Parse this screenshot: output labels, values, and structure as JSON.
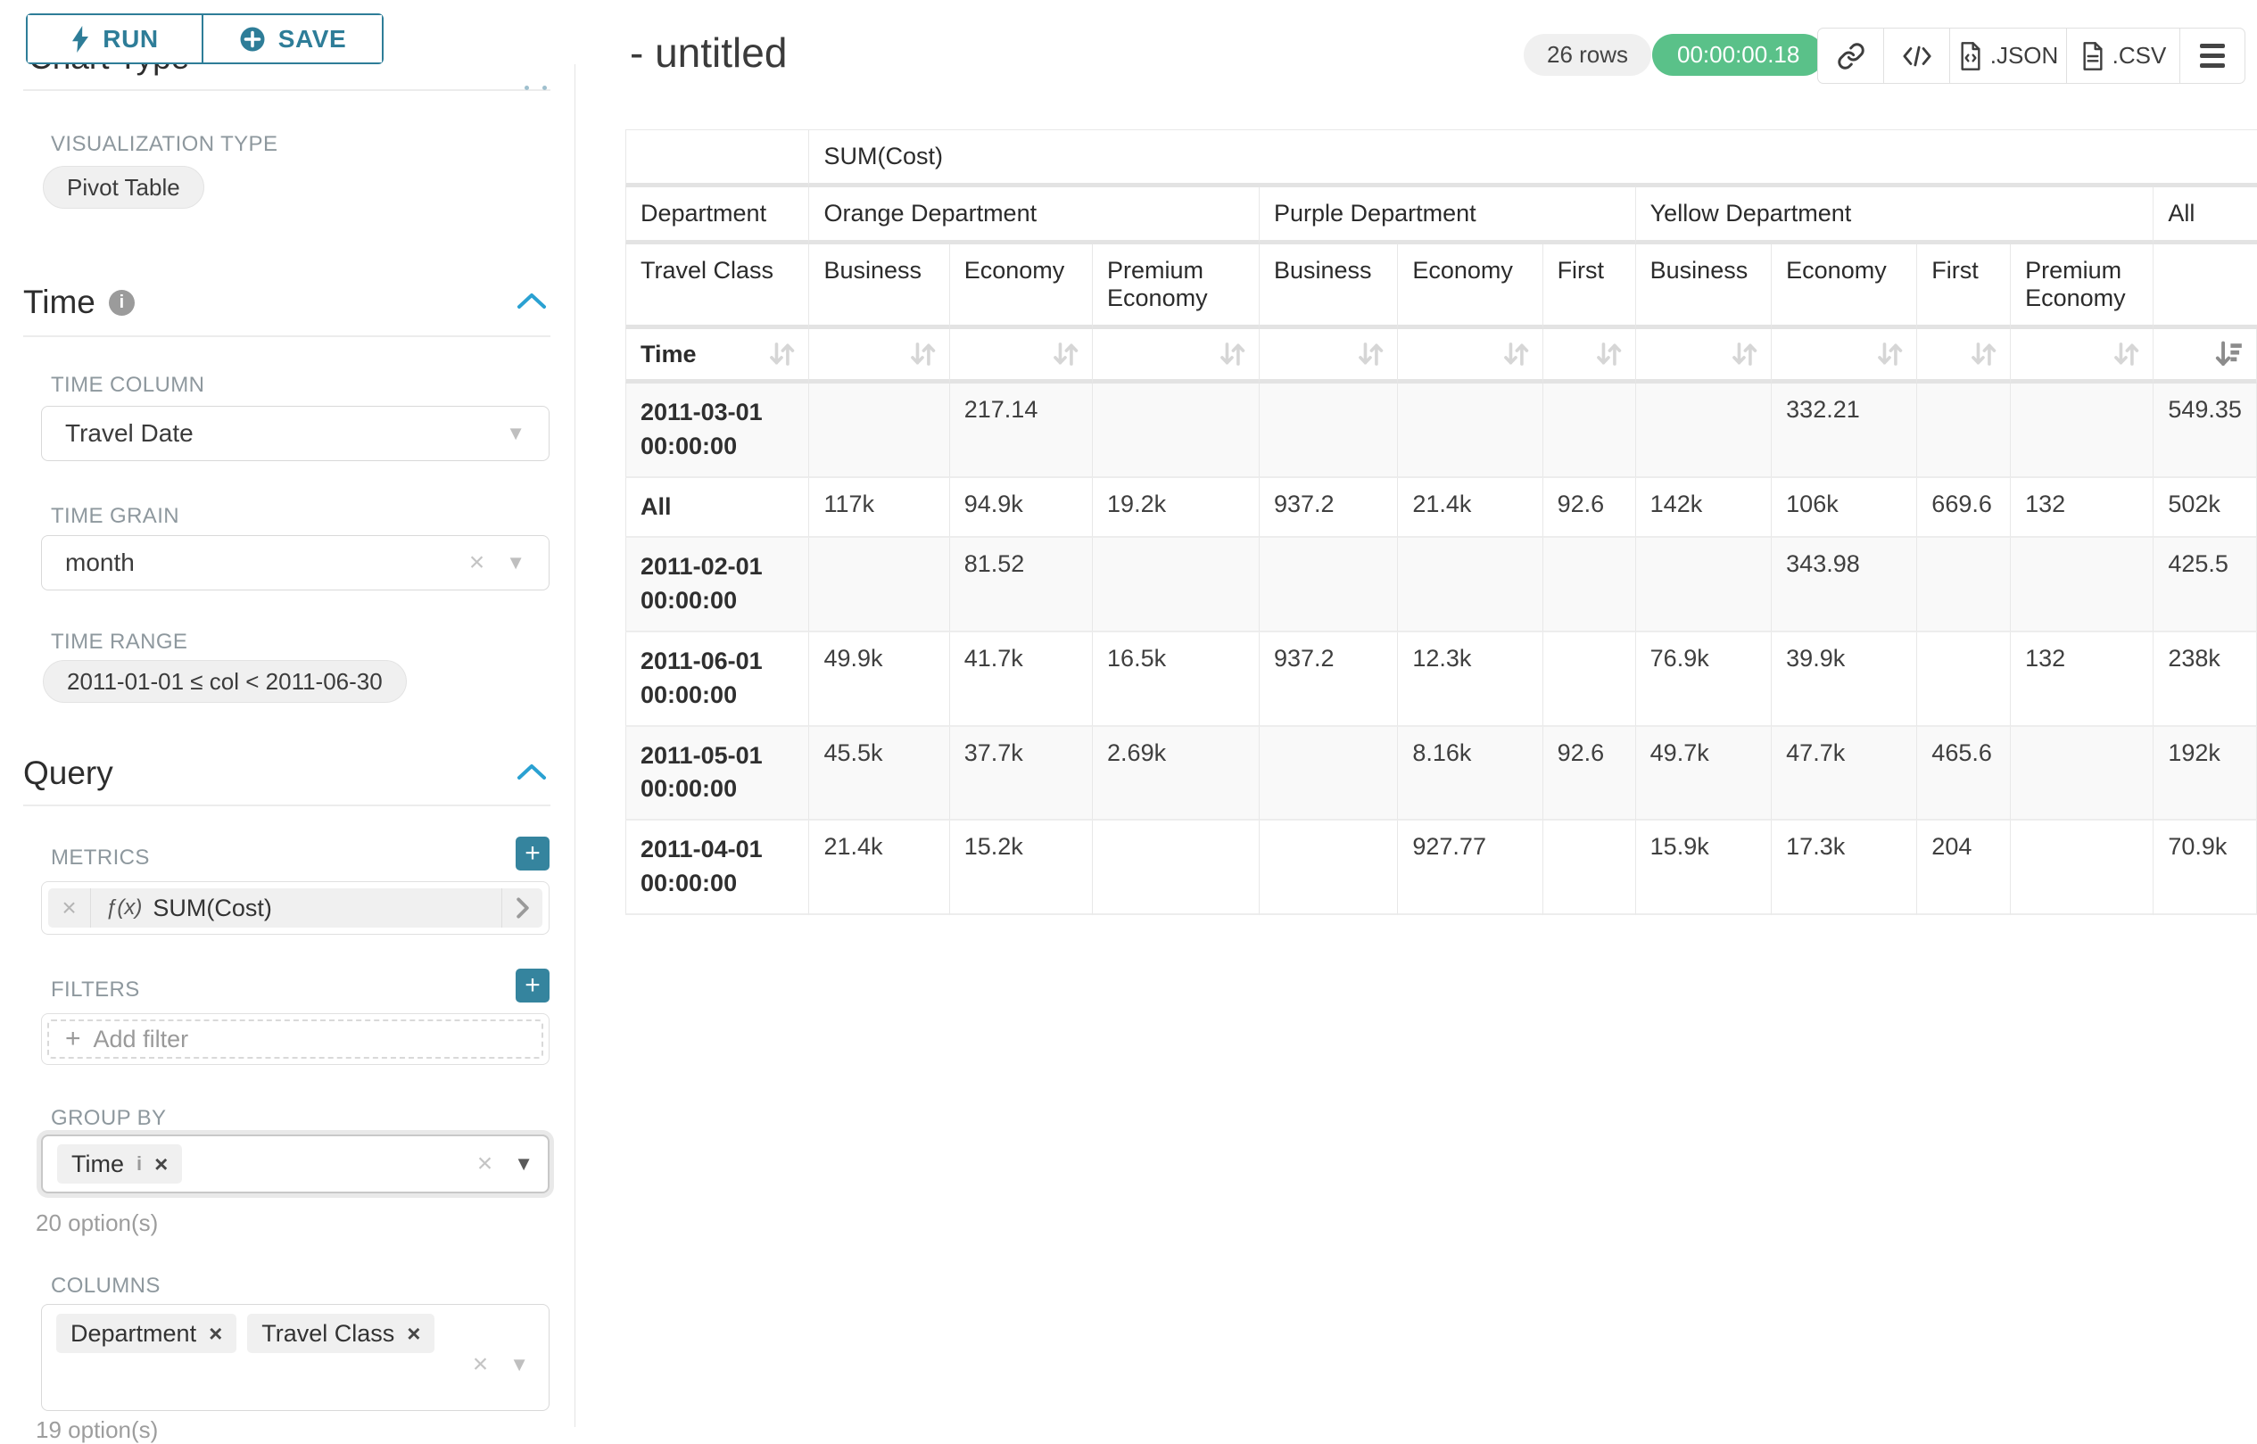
{
  "colors": {
    "accent_teal": "#2e7d98",
    "chevron_blue": "#2aa1d2",
    "success_green": "#5ac189"
  },
  "sidebar": {
    "run_label": "RUN",
    "save_label": "SAVE",
    "chart_type_heading": "Chart Type",
    "viz_type_label": "VISUALIZATION TYPE",
    "viz_type_value": "Pivot Table",
    "time_section": "Time",
    "time_column_label": "TIME COLUMN",
    "time_column_value": "Travel Date",
    "time_grain_label": "TIME GRAIN",
    "time_grain_value": "month",
    "time_range_label": "TIME RANGE",
    "time_range_value": "2011-01-01 ≤ col < 2011-06-30",
    "query_section": "Query",
    "metrics_label": "METRICS",
    "metric_fx": "ƒ(x)",
    "metric_value": "SUM(Cost)",
    "filters_label": "FILTERS",
    "add_filter_placeholder": "Add filter",
    "group_by_label": "GROUP BY",
    "group_by_tags": [
      {
        "label": "Time",
        "info": true
      }
    ],
    "group_by_options": "20 option(s)",
    "columns_label": "COLUMNS",
    "columns_tags": [
      {
        "label": "Department"
      },
      {
        "label": "Travel Class"
      }
    ],
    "columns_options": "19 option(s)"
  },
  "header": {
    "title": "- untitled",
    "row_count": "26 rows",
    "timer": "00:00:00.18",
    "json_label": ".JSON",
    "csv_label": ".CSV"
  },
  "chart_data": {
    "type": "table",
    "metric": "SUM(Cost)",
    "corner": {
      "dept_label": "Department",
      "class_label": "Travel Class",
      "time_label": "Time"
    },
    "groups": [
      {
        "name": "Orange Department",
        "classes": [
          "Business",
          "Economy",
          "Premium Economy"
        ]
      },
      {
        "name": "Purple Department",
        "classes": [
          "Business",
          "Economy",
          "First"
        ]
      },
      {
        "name": "Yellow Department",
        "classes": [
          "Business",
          "Economy",
          "First",
          "Premium Economy"
        ]
      },
      {
        "name": "All",
        "classes": [
          ""
        ]
      }
    ],
    "rows": [
      {
        "label": "2011-03-01 00:00:00",
        "values": [
          "",
          "217.14",
          "",
          "",
          "",
          "",
          "",
          "332.21",
          "",
          "",
          "549.35"
        ]
      },
      {
        "label": "All",
        "values": [
          "117k",
          "94.9k",
          "19.2k",
          "937.2",
          "21.4k",
          "92.6",
          "142k",
          "106k",
          "669.6",
          "132",
          "502k"
        ]
      },
      {
        "label": "2011-02-01 00:00:00",
        "values": [
          "",
          "81.52",
          "",
          "",
          "",
          "",
          "",
          "343.98",
          "",
          "",
          "425.5"
        ]
      },
      {
        "label": "2011-06-01 00:00:00",
        "values": [
          "49.9k",
          "41.7k",
          "16.5k",
          "937.2",
          "12.3k",
          "",
          "76.9k",
          "39.9k",
          "",
          "132",
          "238k"
        ]
      },
      {
        "label": "2011-05-01 00:00:00",
        "values": [
          "45.5k",
          "37.7k",
          "2.69k",
          "",
          "8.16k",
          "92.6",
          "49.7k",
          "47.7k",
          "465.6",
          "",
          "192k"
        ]
      },
      {
        "label": "2011-04-01 00:00:00",
        "values": [
          "21.4k",
          "15.2k",
          "",
          "",
          "927.77",
          "",
          "15.9k",
          "17.3k",
          "204",
          "",
          "70.9k"
        ]
      }
    ]
  }
}
